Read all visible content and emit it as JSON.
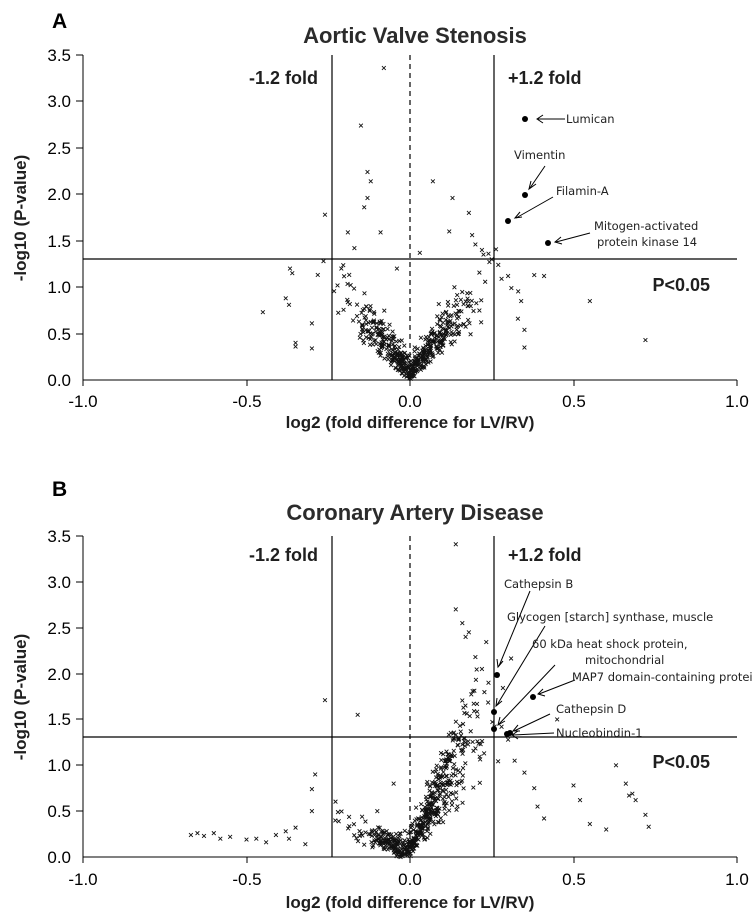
{
  "chart_data": [
    {
      "panel": "A",
      "type": "scatter",
      "title": "Aortic Valve Stenosis",
      "xlabel": "log2 (fold difference for LV/RV)",
      "ylabel": "-log10 (P-value)",
      "xlim": [
        -1.0,
        1.0
      ],
      "ylim": [
        0.0,
        3.5
      ],
      "xticks": [
        "-1.0",
        "-0.5",
        "0.0",
        "0.5",
        "1.0"
      ],
      "yticks": [
        "0.0",
        "0.5",
        "1.0",
        "1.5",
        "2.0",
        "2.5",
        "3.0",
        "3.5"
      ],
      "annotations": {
        "left_fold": "-1.2 fold",
        "right_fold": "+1.2 fold",
        "pvalue": "P<0.05"
      },
      "thresholds": {
        "x_left": -0.263,
        "x_right": 0.263,
        "y": 1.301
      },
      "highlighted": [
        {
          "label": "Lumican",
          "x": 0.35,
          "y": 2.81
        },
        {
          "label": "Vimentin",
          "x": 0.35,
          "y": 1.99
        },
        {
          "label": "Filamin-A",
          "x": 0.3,
          "y": 1.71
        },
        {
          "label": "Mitogen-activated protein kinase 14",
          "label_lines": [
            "Mitogen-activated",
            "protein kinase 14"
          ],
          "x": 0.42,
          "y": 1.48
        }
      ],
      "outliers": [
        [
          -0.45,
          0.73
        ],
        [
          -0.38,
          0.88
        ],
        [
          -0.37,
          0.81
        ],
        [
          -0.36,
          1.15
        ],
        [
          -0.35,
          0.4
        ],
        [
          -0.35,
          0.36
        ],
        [
          -0.3,
          0.34
        ],
        [
          -0.3,
          0.61
        ],
        [
          -0.26,
          1.78
        ],
        [
          -0.21,
          1.2
        ],
        [
          -0.19,
          1.59
        ],
        [
          -0.13,
          2.24
        ],
        [
          -0.12,
          2.14
        ],
        [
          -0.13,
          1.96
        ],
        [
          -0.09,
          1.59
        ],
        [
          -0.14,
          1.86
        ],
        [
          -0.15,
          2.74
        ],
        [
          -0.08,
          3.36
        ],
        [
          -0.17,
          1.42
        ],
        [
          0.07,
          2.14
        ],
        [
          0.12,
          1.6
        ],
        [
          0.13,
          1.96
        ],
        [
          0.18,
          1.8
        ],
        [
          0.19,
          1.56
        ],
        [
          0.2,
          1.46
        ],
        [
          0.22,
          1.4
        ],
        [
          0.24,
          1.36
        ],
        [
          0.25,
          1.3
        ],
        [
          0.27,
          1.24
        ],
        [
          0.28,
          1.09
        ],
        [
          0.3,
          1.12
        ],
        [
          0.31,
          0.99
        ],
        [
          0.33,
          0.66
        ],
        [
          0.34,
          0.85
        ],
        [
          0.35,
          0.54
        ],
        [
          0.35,
          0.35
        ],
        [
          0.38,
          1.13
        ],
        [
          0.41,
          1.12
        ],
        [
          0.55,
          0.85
        ],
        [
          0.72,
          0.43
        ],
        [
          0.03,
          1.37
        ],
        [
          -0.04,
          1.2
        ]
      ]
    },
    {
      "panel": "B",
      "type": "scatter",
      "title": "Coronary Artery Disease",
      "xlabel": "log2 (fold difference for LV/RV)",
      "ylabel": "-log10 (P-value)",
      "xlim": [
        -1.0,
        1.0
      ],
      "ylim": [
        0.0,
        3.5
      ],
      "xticks": [
        "-1.0",
        "-0.5",
        "0.0",
        "0.5",
        "1.0"
      ],
      "yticks": [
        "0.0",
        "0.5",
        "1.0",
        "1.5",
        "2.0",
        "2.5",
        "3.0",
        "3.5"
      ],
      "annotations": {
        "left_fold": "-1.2 fold",
        "right_fold": "+1.2 fold",
        "pvalue": "P<0.05"
      },
      "thresholds": {
        "x_left": -0.263,
        "x_right": 0.263,
        "y": 1.301
      },
      "highlighted": [
        {
          "label": "Cathepsin B",
          "x": 0.26,
          "y": 1.97
        },
        {
          "label": "Glycogen [starch] synthase, muscle",
          "x": 0.25,
          "y": 1.55
        },
        {
          "label": "60 kDa heat shock protein, mitochondrial",
          "label_lines": [
            "60 kDa heat shock protein,",
            "mitochondrial"
          ],
          "x": 0.25,
          "y": 1.38
        },
        {
          "label": "MAP7 domain-containing protei",
          "x": 0.37,
          "y": 1.72
        },
        {
          "label": "Cathepsin D",
          "x": 0.31,
          "y": 1.35
        },
        {
          "label": "Nucleobindin-1",
          "x": 0.3,
          "y": 1.33
        }
      ],
      "outliers": [
        [
          -0.67,
          0.24
        ],
        [
          -0.65,
          0.26
        ],
        [
          -0.63,
          0.23
        ],
        [
          -0.6,
          0.26
        ],
        [
          -0.58,
          0.2
        ],
        [
          -0.55,
          0.22
        ],
        [
          -0.5,
          0.19
        ],
        [
          -0.47,
          0.2
        ],
        [
          -0.44,
          0.16
        ],
        [
          -0.41,
          0.24
        ],
        [
          -0.38,
          0.28
        ],
        [
          -0.37,
          0.2
        ],
        [
          -0.35,
          0.32
        ],
        [
          -0.32,
          0.14
        ],
        [
          -0.3,
          0.5
        ],
        [
          -0.3,
          0.74
        ],
        [
          -0.29,
          0.9
        ],
        [
          -0.26,
          1.71
        ],
        [
          -0.16,
          1.55
        ],
        [
          0.14,
          3.41
        ],
        [
          0.14,
          2.7
        ],
        [
          0.16,
          2.55
        ],
        [
          0.17,
          2.4
        ],
        [
          0.18,
          2.45
        ],
        [
          0.2,
          2.18
        ],
        [
          0.22,
          2.05
        ],
        [
          0.24,
          1.9
        ],
        [
          0.28,
          1.42
        ],
        [
          0.3,
          1.28
        ],
        [
          0.32,
          1.05
        ],
        [
          0.35,
          0.92
        ],
        [
          0.38,
          0.75
        ],
        [
          0.39,
          0.55
        ],
        [
          0.41,
          0.42
        ],
        [
          0.45,
          1.5
        ],
        [
          0.5,
          0.78
        ],
        [
          0.52,
          0.62
        ],
        [
          0.55,
          0.36
        ],
        [
          0.6,
          0.3
        ],
        [
          0.63,
          1.0
        ],
        [
          0.66,
          0.8
        ],
        [
          0.69,
          0.62
        ],
        [
          0.67,
          0.67
        ],
        [
          0.68,
          0.69
        ],
        [
          0.72,
          0.46
        ],
        [
          0.73,
          0.33
        ],
        [
          -0.1,
          0.5
        ],
        [
          -0.05,
          0.8
        ]
      ]
    }
  ]
}
